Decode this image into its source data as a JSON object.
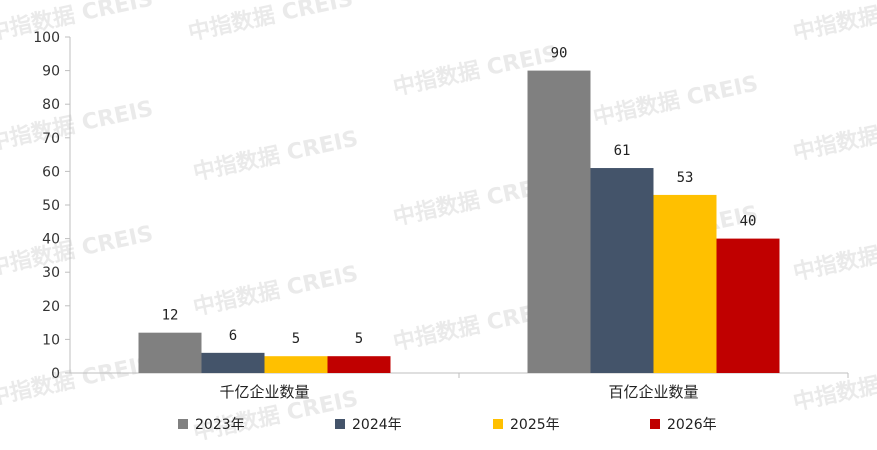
{
  "watermark": "中指数据 CREIS",
  "chart_data": {
    "type": "bar",
    "categories": [
      "千亿企业数量",
      "百亿企业数量"
    ],
    "series": [
      {
        "name": "2023年",
        "values": [
          12,
          90
        ],
        "color": "#808080"
      },
      {
        "name": "2024年",
        "values": [
          6,
          61
        ],
        "color": "#44546a"
      },
      {
        "name": "2025年",
        "values": [
          5,
          53
        ],
        "color": "#ffc000"
      },
      {
        "name": "2026年",
        "values": [
          5,
          40
        ],
        "color": "#c00000"
      }
    ],
    "yticks": [
      "0",
      "10",
      "20",
      "30",
      "40",
      "50",
      "60",
      "70",
      "80",
      "90",
      "100"
    ],
    "ylim": [
      0,
      100
    ],
    "grid": false,
    "legend": "bottom",
    "data_labels": true,
    "title": "",
    "xlabel": "",
    "ylabel": ""
  }
}
